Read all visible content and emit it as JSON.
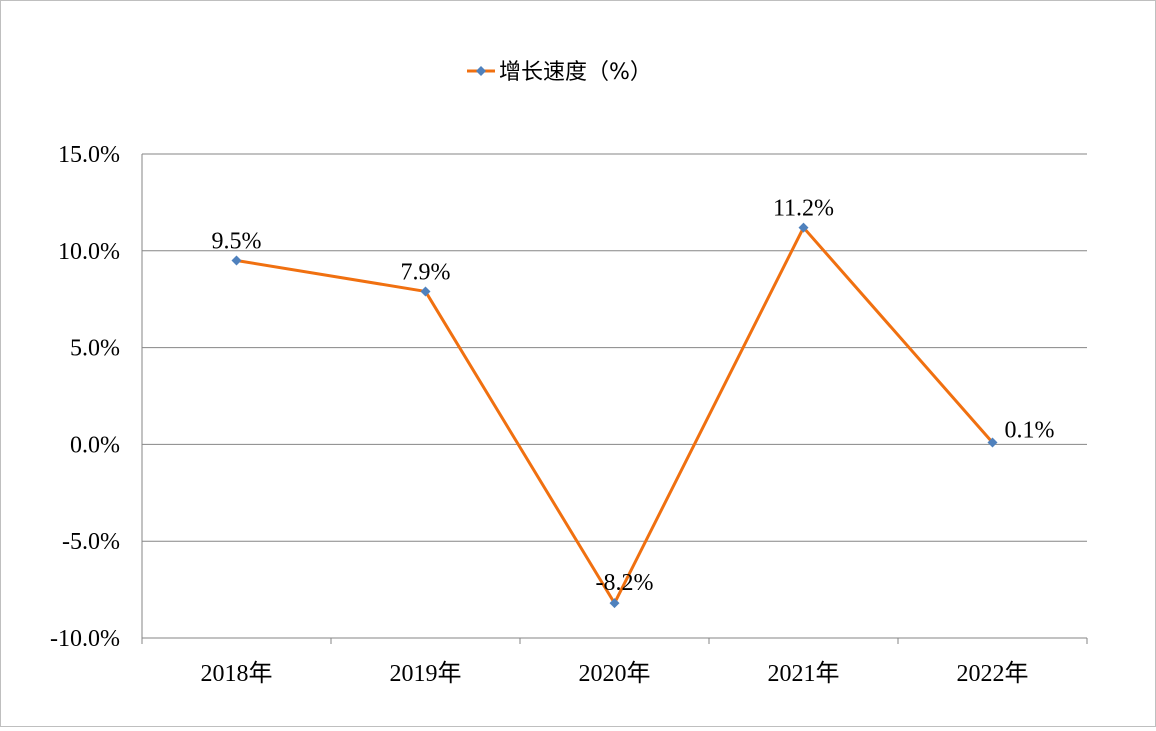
{
  "chart_data": {
    "type": "line",
    "categories": [
      "2018年",
      "2019年",
      "2020年",
      "2021年",
      "2022年"
    ],
    "series": [
      {
        "name": "增长速度（%）",
        "values": [
          9.5,
          7.9,
          -8.2,
          11.2,
          0.1
        ],
        "labels": [
          "9.5%",
          "7.9%",
          "-8.2%",
          "11.2%",
          "0.1%"
        ]
      }
    ],
    "ylim": [
      -10,
      15
    ],
    "yticks": [
      15,
      10,
      5,
      0,
      -5,
      -10
    ],
    "ytick_labels": [
      "15.0%",
      "10.0%",
      "5.0%",
      "0.0%",
      "-5.0%",
      "-10.0%"
    ],
    "grid": true,
    "legend_position": "top",
    "colors": {
      "line": "#f07010",
      "marker": "#4f81bd",
      "grid": "#868686"
    }
  }
}
